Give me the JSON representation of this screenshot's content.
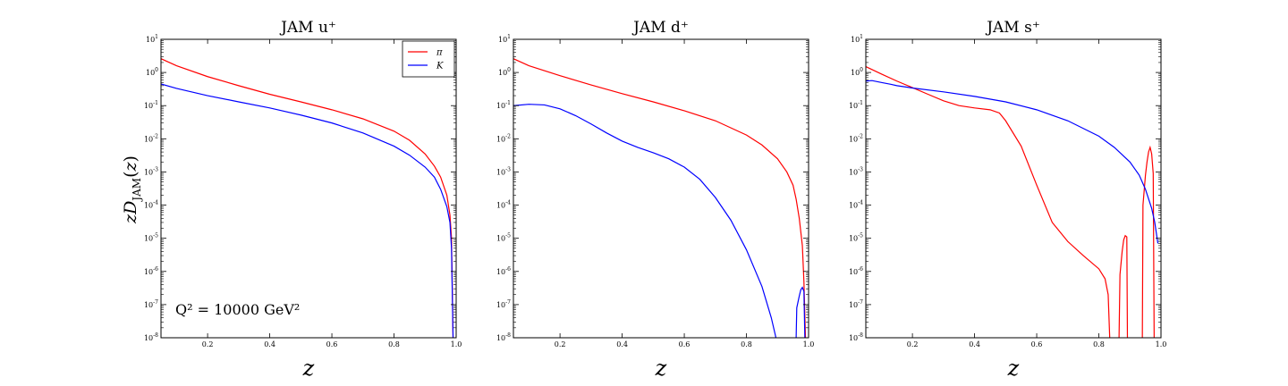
{
  "figure": {
    "ylabel": "zD_JAM(z)",
    "xlabel": "z",
    "annotation": "Q² = 10000 GeV²"
  },
  "colors": {
    "pi": "#ff0000",
    "K": "#0000ff"
  },
  "legend": {
    "entries": [
      "π",
      "K"
    ],
    "placement": "top-right",
    "panel": 0
  },
  "chart_data": [
    {
      "type": "line",
      "title": "JAM u⁺",
      "xlabel": "z",
      "ylabel": "zD_JAM(z)",
      "xlim": [
        0.05,
        1.0
      ],
      "ylim": [
        1e-08,
        10
      ],
      "yscale": "log",
      "xticks": [
        "0.2",
        "0.4",
        "0.6",
        "0.8",
        "1.0"
      ],
      "yticks": [
        "10^1",
        "10^0",
        "10^-1",
        "10^-2",
        "10^-3",
        "10^-4",
        "10^-5",
        "10^-6",
        "10^-7",
        "10^-8"
      ],
      "series": [
        {
          "name": "π",
          "color": "#ff0000",
          "x": [
            0.05,
            0.1,
            0.2,
            0.3,
            0.4,
            0.5,
            0.6,
            0.7,
            0.8,
            0.85,
            0.9,
            0.93,
            0.95,
            0.97,
            0.98,
            0.985,
            0.99
          ],
          "y": [
            2.6,
            1.6,
            0.75,
            0.4,
            0.22,
            0.13,
            0.075,
            0.04,
            0.017,
            0.009,
            0.0035,
            0.0015,
            0.0007,
            0.0002,
            5e-05,
            1e-05,
            1e-08
          ]
        },
        {
          "name": "K",
          "color": "#0000ff",
          "x": [
            0.05,
            0.1,
            0.2,
            0.3,
            0.4,
            0.5,
            0.6,
            0.7,
            0.8,
            0.85,
            0.9,
            0.93,
            0.95,
            0.97,
            0.98,
            0.985,
            0.99
          ],
          "y": [
            0.45,
            0.33,
            0.2,
            0.13,
            0.085,
            0.052,
            0.03,
            0.015,
            0.006,
            0.0032,
            0.0014,
            0.0007,
            0.0003,
            9e-05,
            3e-05,
            5e-06,
            1e-08
          ]
        }
      ]
    },
    {
      "type": "line",
      "title": "JAM d⁺",
      "xlabel": "z",
      "xlim": [
        0.05,
        1.0
      ],
      "ylim": [
        1e-08,
        10
      ],
      "yscale": "log",
      "xticks": [
        "0.2",
        "0.4",
        "0.6",
        "0.8",
        "1.0"
      ],
      "yticks": [
        "10^1",
        "10^0",
        "10^-1",
        "10^-2",
        "10^-3",
        "10^-4",
        "10^-5",
        "10^-6",
        "10^-7",
        "10^-8"
      ],
      "series": [
        {
          "name": "π",
          "color": "#ff0000",
          "x": [
            0.05,
            0.1,
            0.2,
            0.3,
            0.4,
            0.5,
            0.6,
            0.7,
            0.8,
            0.85,
            0.9,
            0.93,
            0.95,
            0.96,
            0.97,
            0.98,
            0.985,
            0.99
          ],
          "y": [
            2.6,
            1.6,
            0.8,
            0.42,
            0.23,
            0.13,
            0.07,
            0.035,
            0.013,
            0.0065,
            0.0025,
            0.001,
            0.0004,
            0.00015,
            4e-05,
            6e-06,
            5e-07,
            1e-08
          ]
        },
        {
          "name": "K",
          "color": "#0000ff",
          "x": [
            0.05,
            0.1,
            0.15,
            0.2,
            0.25,
            0.3,
            0.35,
            0.4,
            0.45,
            0.5,
            0.55,
            0.6,
            0.65,
            0.7,
            0.75,
            0.8,
            0.85,
            0.88,
            0.895
          ],
          "y": [
            0.1,
            0.11,
            0.105,
            0.08,
            0.05,
            0.028,
            0.015,
            0.0085,
            0.0055,
            0.0038,
            0.0025,
            0.0014,
            0.0006,
            0.00017,
            3.5e-05,
            4.5e-06,
            3.5e-07,
            4e-08,
            1e-08
          ]
        },
        {
          "name": "K",
          "color": "#0000ff",
          "x": [
            0.96,
            0.962,
            0.97,
            0.975,
            0.98,
            0.985,
            0.988
          ],
          "y": [
            1e-08,
            8e-08,
            1.8e-07,
            2.8e-07,
            3.3e-07,
            2.5e-07,
            1e-08
          ]
        }
      ]
    },
    {
      "type": "line",
      "title": "JAM s⁺",
      "xlabel": "z",
      "xlim": [
        0.05,
        1.0
      ],
      "ylim": [
        1e-08,
        10
      ],
      "yscale": "log",
      "xticks": [
        "0.2",
        "0.4",
        "0.6",
        "0.8",
        "1.0"
      ],
      "yticks": [
        "10^1",
        "10^0",
        "10^-1",
        "10^-2",
        "10^-3",
        "10^-4",
        "10^-5",
        "10^-6",
        "10^-7",
        "10^-8"
      ],
      "series": [
        {
          "name": "π",
          "color": "#ff0000",
          "x": [
            0.05,
            0.1,
            0.15,
            0.2,
            0.25,
            0.3,
            0.35,
            0.4,
            0.45,
            0.48,
            0.5,
            0.55,
            0.6,
            0.65,
            0.7,
            0.75,
            0.8,
            0.82,
            0.83,
            0.835
          ],
          "y": [
            1.5,
            0.9,
            0.55,
            0.35,
            0.22,
            0.14,
            0.1,
            0.085,
            0.075,
            0.06,
            0.035,
            0.006,
            0.0004,
            3e-05,
            8e-06,
            3e-06,
            1.2e-06,
            6e-07,
            2e-07,
            1e-08
          ]
        },
        {
          "name": "π",
          "color": "#ff0000",
          "x": [
            0.865,
            0.868,
            0.875,
            0.88,
            0.885,
            0.89,
            0.892
          ],
          "y": [
            1e-08,
            8e-07,
            4e-06,
            9e-06,
            1.2e-05,
            1.1e-05,
            1e-08
          ]
        },
        {
          "name": "π",
          "color": "#ff0000",
          "x": [
            0.94,
            0.942,
            0.95,
            0.955,
            0.96,
            0.965,
            0.97,
            0.975,
            0.978
          ],
          "y": [
            1e-08,
            0.0001,
            0.0008,
            0.002,
            0.004,
            0.0055,
            0.0035,
            0.0009,
            1e-08
          ]
        },
        {
          "name": "K",
          "color": "#0000ff",
          "x": [
            0.05,
            0.07,
            0.1,
            0.13,
            0.15,
            0.2,
            0.3,
            0.4,
            0.5,
            0.6,
            0.7,
            0.8,
            0.85,
            0.9,
            0.93,
            0.95,
            0.97,
            0.98,
            0.99
          ],
          "y": [
            0.55,
            0.57,
            0.5,
            0.44,
            0.4,
            0.34,
            0.26,
            0.19,
            0.13,
            0.075,
            0.035,
            0.012,
            0.0055,
            0.002,
            0.0008,
            0.0003,
            8e-05,
            3e-05,
            7e-06
          ]
        }
      ]
    }
  ]
}
